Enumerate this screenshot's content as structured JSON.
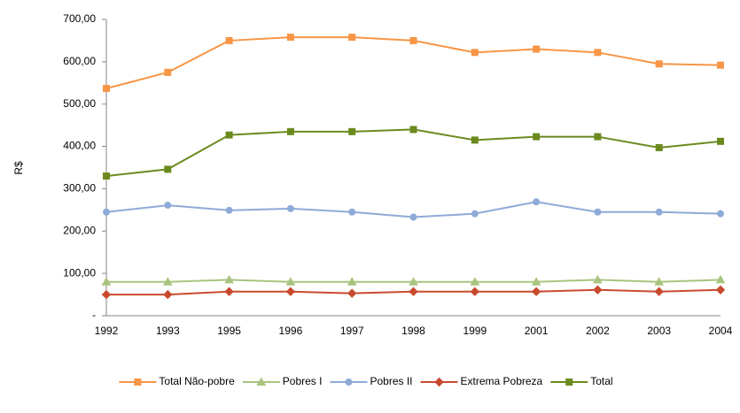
{
  "chart_data": {
    "type": "line",
    "y_label": "R$",
    "categories": [
      "1992",
      "1993",
      "1995",
      "1996",
      "1997",
      "1998",
      "1999",
      "2001",
      "2002",
      "2003",
      "2004"
    ],
    "series": [
      {
        "name": "Total Não-pobre",
        "color": "#f79646",
        "marker": "square",
        "values": [
          537,
          575,
          650,
          658,
          658,
          650,
          622,
          630,
          622,
          595,
          592
        ]
      },
      {
        "name": "Pobres I",
        "color": "#a9c47f",
        "marker": "triangle",
        "values": [
          80,
          80,
          85,
          80,
          80,
          80,
          80,
          80,
          85,
          80,
          85
        ]
      },
      {
        "name": "Pobres II",
        "color": "#8eaad8",
        "marker": "circle",
        "values": [
          245,
          261,
          249,
          253,
          245,
          233,
          241,
          269,
          245,
          245,
          241
        ]
      },
      {
        "name": "Extrema Pobreza",
        "color": "#c84a2e",
        "marker": "diamond",
        "values": [
          50,
          50,
          57,
          57,
          53,
          57,
          57,
          57,
          61,
          57,
          61
        ]
      },
      {
        "name": "Total",
        "color": "#6b8a1e",
        "marker": "square",
        "values": [
          330,
          346,
          427,
          435,
          435,
          440,
          415,
          423,
          423,
          397,
          412
        ]
      }
    ],
    "ylim": [
      0,
      700
    ],
    "yticks": [
      {
        "value": 0,
        "label": "-"
      },
      {
        "value": 100,
        "label": "100,00"
      },
      {
        "value": 200,
        "label": "200,00"
      },
      {
        "value": 300,
        "label": "300,00"
      },
      {
        "value": 400,
        "label": "400,00"
      },
      {
        "value": 500,
        "label": "500,00"
      },
      {
        "value": 600,
        "label": "600,00"
      },
      {
        "value": 700,
        "label": "700,00"
      }
    ],
    "legend": "bottom"
  }
}
